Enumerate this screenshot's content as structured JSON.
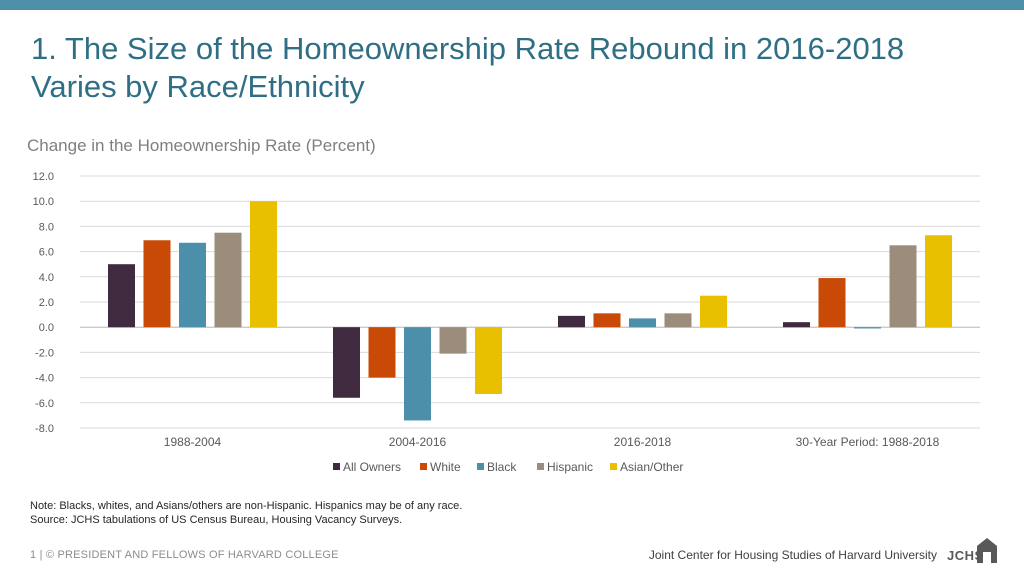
{
  "slide": {
    "title": "1. The Size of the Homeownership Rate Rebound in 2016-2018 Varies by Race/Ethnicity",
    "subtitle": "Change in the Homeownership Rate (Percent)",
    "note_line1": "Note: Blacks, whites, and Asians/others are non-Hispanic. Hispanics may be of any race.",
    "note_line2": "Source: JCHS tabulations of US Census Bureau, Housing Vacancy Surveys.",
    "footer_left": "1 | © PRESIDENT AND FELLOWS OF HARVARD COLLEGE",
    "footer_right": "Joint Center for Housing Studies of Harvard University",
    "logo_text": "JCHS",
    "accent_color": "#4e8fa9"
  },
  "chart_data": {
    "type": "bar",
    "title": "",
    "ylabel": "Change in the Homeownership Rate (Percent)",
    "xlabel": "",
    "categories": [
      "1988-2004",
      "2004-2016",
      "2016-2018",
      "30-Year Period: 1988-2018"
    ],
    "ylim": [
      -8,
      12
    ],
    "yticks": [
      12.0,
      10.0,
      8.0,
      6.0,
      4.0,
      2.0,
      0.0,
      -2.0,
      -4.0,
      -6.0,
      -8.0
    ],
    "ytick_labels": [
      "12.0",
      "10.0",
      "8.0",
      "6.0",
      "4.0",
      "2.0",
      "0.0",
      "-2.0",
      "-4.0",
      "-6.0",
      "-8.0"
    ],
    "grid": true,
    "legend_position": "bottom",
    "series": [
      {
        "name": "All Owners",
        "color": "#3f2a40",
        "values": [
          5.0,
          -5.6,
          0.9,
          0.4
        ]
      },
      {
        "name": "White",
        "color": "#c94a06",
        "values": [
          6.9,
          -4.0,
          1.1,
          3.9
        ]
      },
      {
        "name": "Black",
        "color": "#4b8fab",
        "values": [
          6.7,
          -7.4,
          0.7,
          -0.1
        ]
      },
      {
        "name": "Hispanic",
        "color": "#9b8c7b",
        "values": [
          7.5,
          -2.1,
          1.1,
          6.5
        ]
      },
      {
        "name": "Asian/Other",
        "color": "#e8c000",
        "values": [
          10.0,
          -5.3,
          2.5,
          7.3
        ]
      }
    ]
  }
}
